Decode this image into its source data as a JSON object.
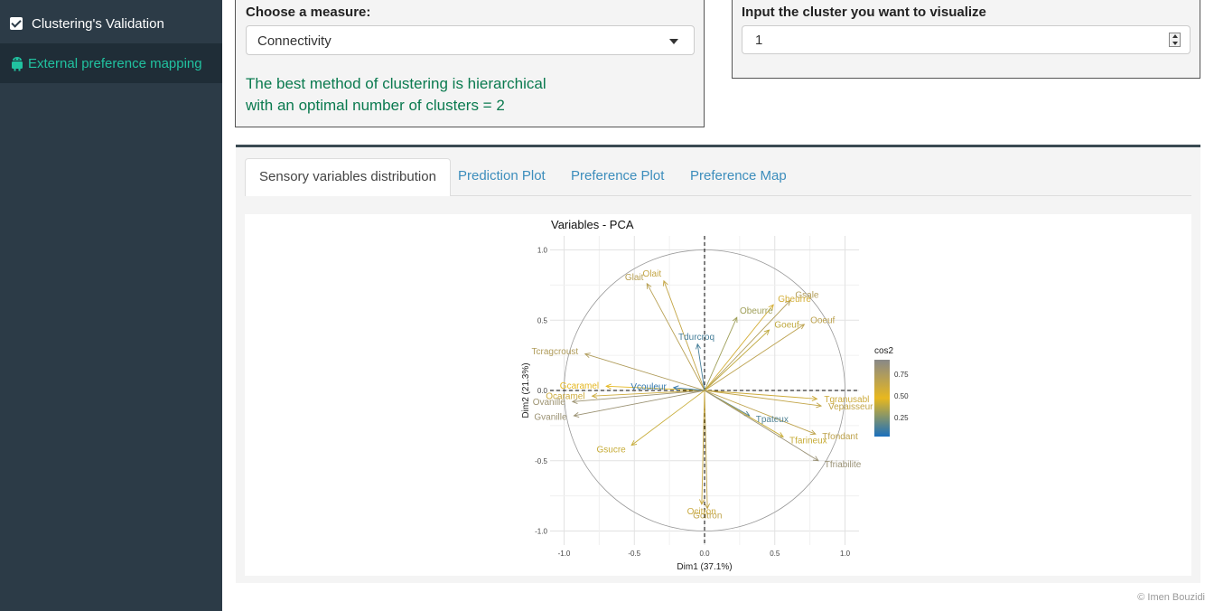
{
  "sidebar": {
    "items": [
      {
        "label": "Clustering's Validation",
        "icon": "checkbox-icon"
      },
      {
        "label": "External preference mapping",
        "icon": "android-icon"
      }
    ]
  },
  "controls": {
    "measure_label": "Choose a measure:",
    "measure_value": "Connectivity",
    "result_line1": "The best method of clustering is hierarchical",
    "result_line2": "with an optimal number of clusters = 2",
    "cluster_label": "Input the cluster you want to visualize",
    "cluster_value": "1"
  },
  "tabs": [
    {
      "label": "Sensory variables distribution",
      "active": true
    },
    {
      "label": "Prediction Plot"
    },
    {
      "label": "Preference Plot"
    },
    {
      "label": "Preference Map"
    }
  ],
  "footer": "© Imen Bouzidi",
  "chart_data": {
    "type": "scatter",
    "title": "Variables - PCA",
    "xlabel": "Dim1 (37.1%)",
    "ylabel": "Dim2 (21.3%)",
    "xlim": [
      -1.0,
      1.0
    ],
    "ylim": [
      -1.0,
      1.0
    ],
    "xticks": [
      "-1.0",
      "-0.5",
      "0.0",
      "0.5",
      "1.0"
    ],
    "yticks": [
      "-1.0",
      "-0.5",
      "0.0",
      "0.5",
      "1.0"
    ],
    "legend": {
      "title": "cos2",
      "ticks": [
        "0.75",
        "0.50",
        "0.25"
      ],
      "position": "right"
    },
    "colors": {
      "low": "#1a6fbd",
      "mid": "#e8b81e",
      "high": "#888888"
    },
    "variables": [
      {
        "name": "Olait",
        "x": -0.29,
        "y": 0.78,
        "cos2": 0.69
      },
      {
        "name": "Glait",
        "x": -0.41,
        "y": 0.76,
        "cos2": 0.75
      },
      {
        "name": "Gsale",
        "x": 0.61,
        "y": 0.64,
        "cos2": 0.78
      },
      {
        "name": "Gbeurre",
        "x": 0.49,
        "y": 0.61,
        "cos2": 0.61
      },
      {
        "name": "Obeurre",
        "x": 0.23,
        "y": 0.52,
        "cos2": 0.32
      },
      {
        "name": "Ooeuf",
        "x": 0.71,
        "y": 0.47,
        "cos2": 0.73
      },
      {
        "name": "Goeuf",
        "x": 0.46,
        "y": 0.43,
        "cos2": 0.4
      },
      {
        "name": "Tdurcroq",
        "x": -0.05,
        "y": 0.33,
        "cos2": 0.11
      },
      {
        "name": "Tcragcroust",
        "x": -0.85,
        "y": 0.26,
        "cos2": 0.79
      },
      {
        "name": "Gcaramel",
        "x": -0.7,
        "y": 0.03,
        "cos2": 0.49
      },
      {
        "name": "Vcouleur",
        "x": -0.22,
        "y": 0.02,
        "cos2": 0.05
      },
      {
        "name": "Ocaramel",
        "x": -0.8,
        "y": -0.04,
        "cos2": 0.64
      },
      {
        "name": "Ovanille",
        "x": -0.94,
        "y": -0.08,
        "cos2": 0.89
      },
      {
        "name": "Gvanille",
        "x": -0.93,
        "y": -0.18,
        "cos2": 0.9
      },
      {
        "name": "Gsucre",
        "x": -0.52,
        "y": -0.39,
        "cos2": 0.42
      },
      {
        "name": "Tgranusabl",
        "x": 0.8,
        "y": -0.06,
        "cos2": 0.64
      },
      {
        "name": "Vepaisseur",
        "x": 0.83,
        "y": -0.11,
        "cos2": 0.7
      },
      {
        "name": "Tpateux",
        "x": 0.32,
        "y": -0.18,
        "cos2": 0.13
      },
      {
        "name": "Tfondant",
        "x": 0.79,
        "y": -0.31,
        "cos2": 0.72
      },
      {
        "name": "Tfarineux",
        "x": 0.56,
        "y": -0.33,
        "cos2": 0.42
      },
      {
        "name": "Tfriabilite",
        "x": 0.81,
        "y": -0.5,
        "cos2": 0.91
      },
      {
        "name": "Gcitron",
        "x": 0.02,
        "y": -0.84,
        "cos2": 0.71
      },
      {
        "name": "Ocitron",
        "x": -0.02,
        "y": -0.81,
        "cos2": 0.66
      }
    ]
  }
}
